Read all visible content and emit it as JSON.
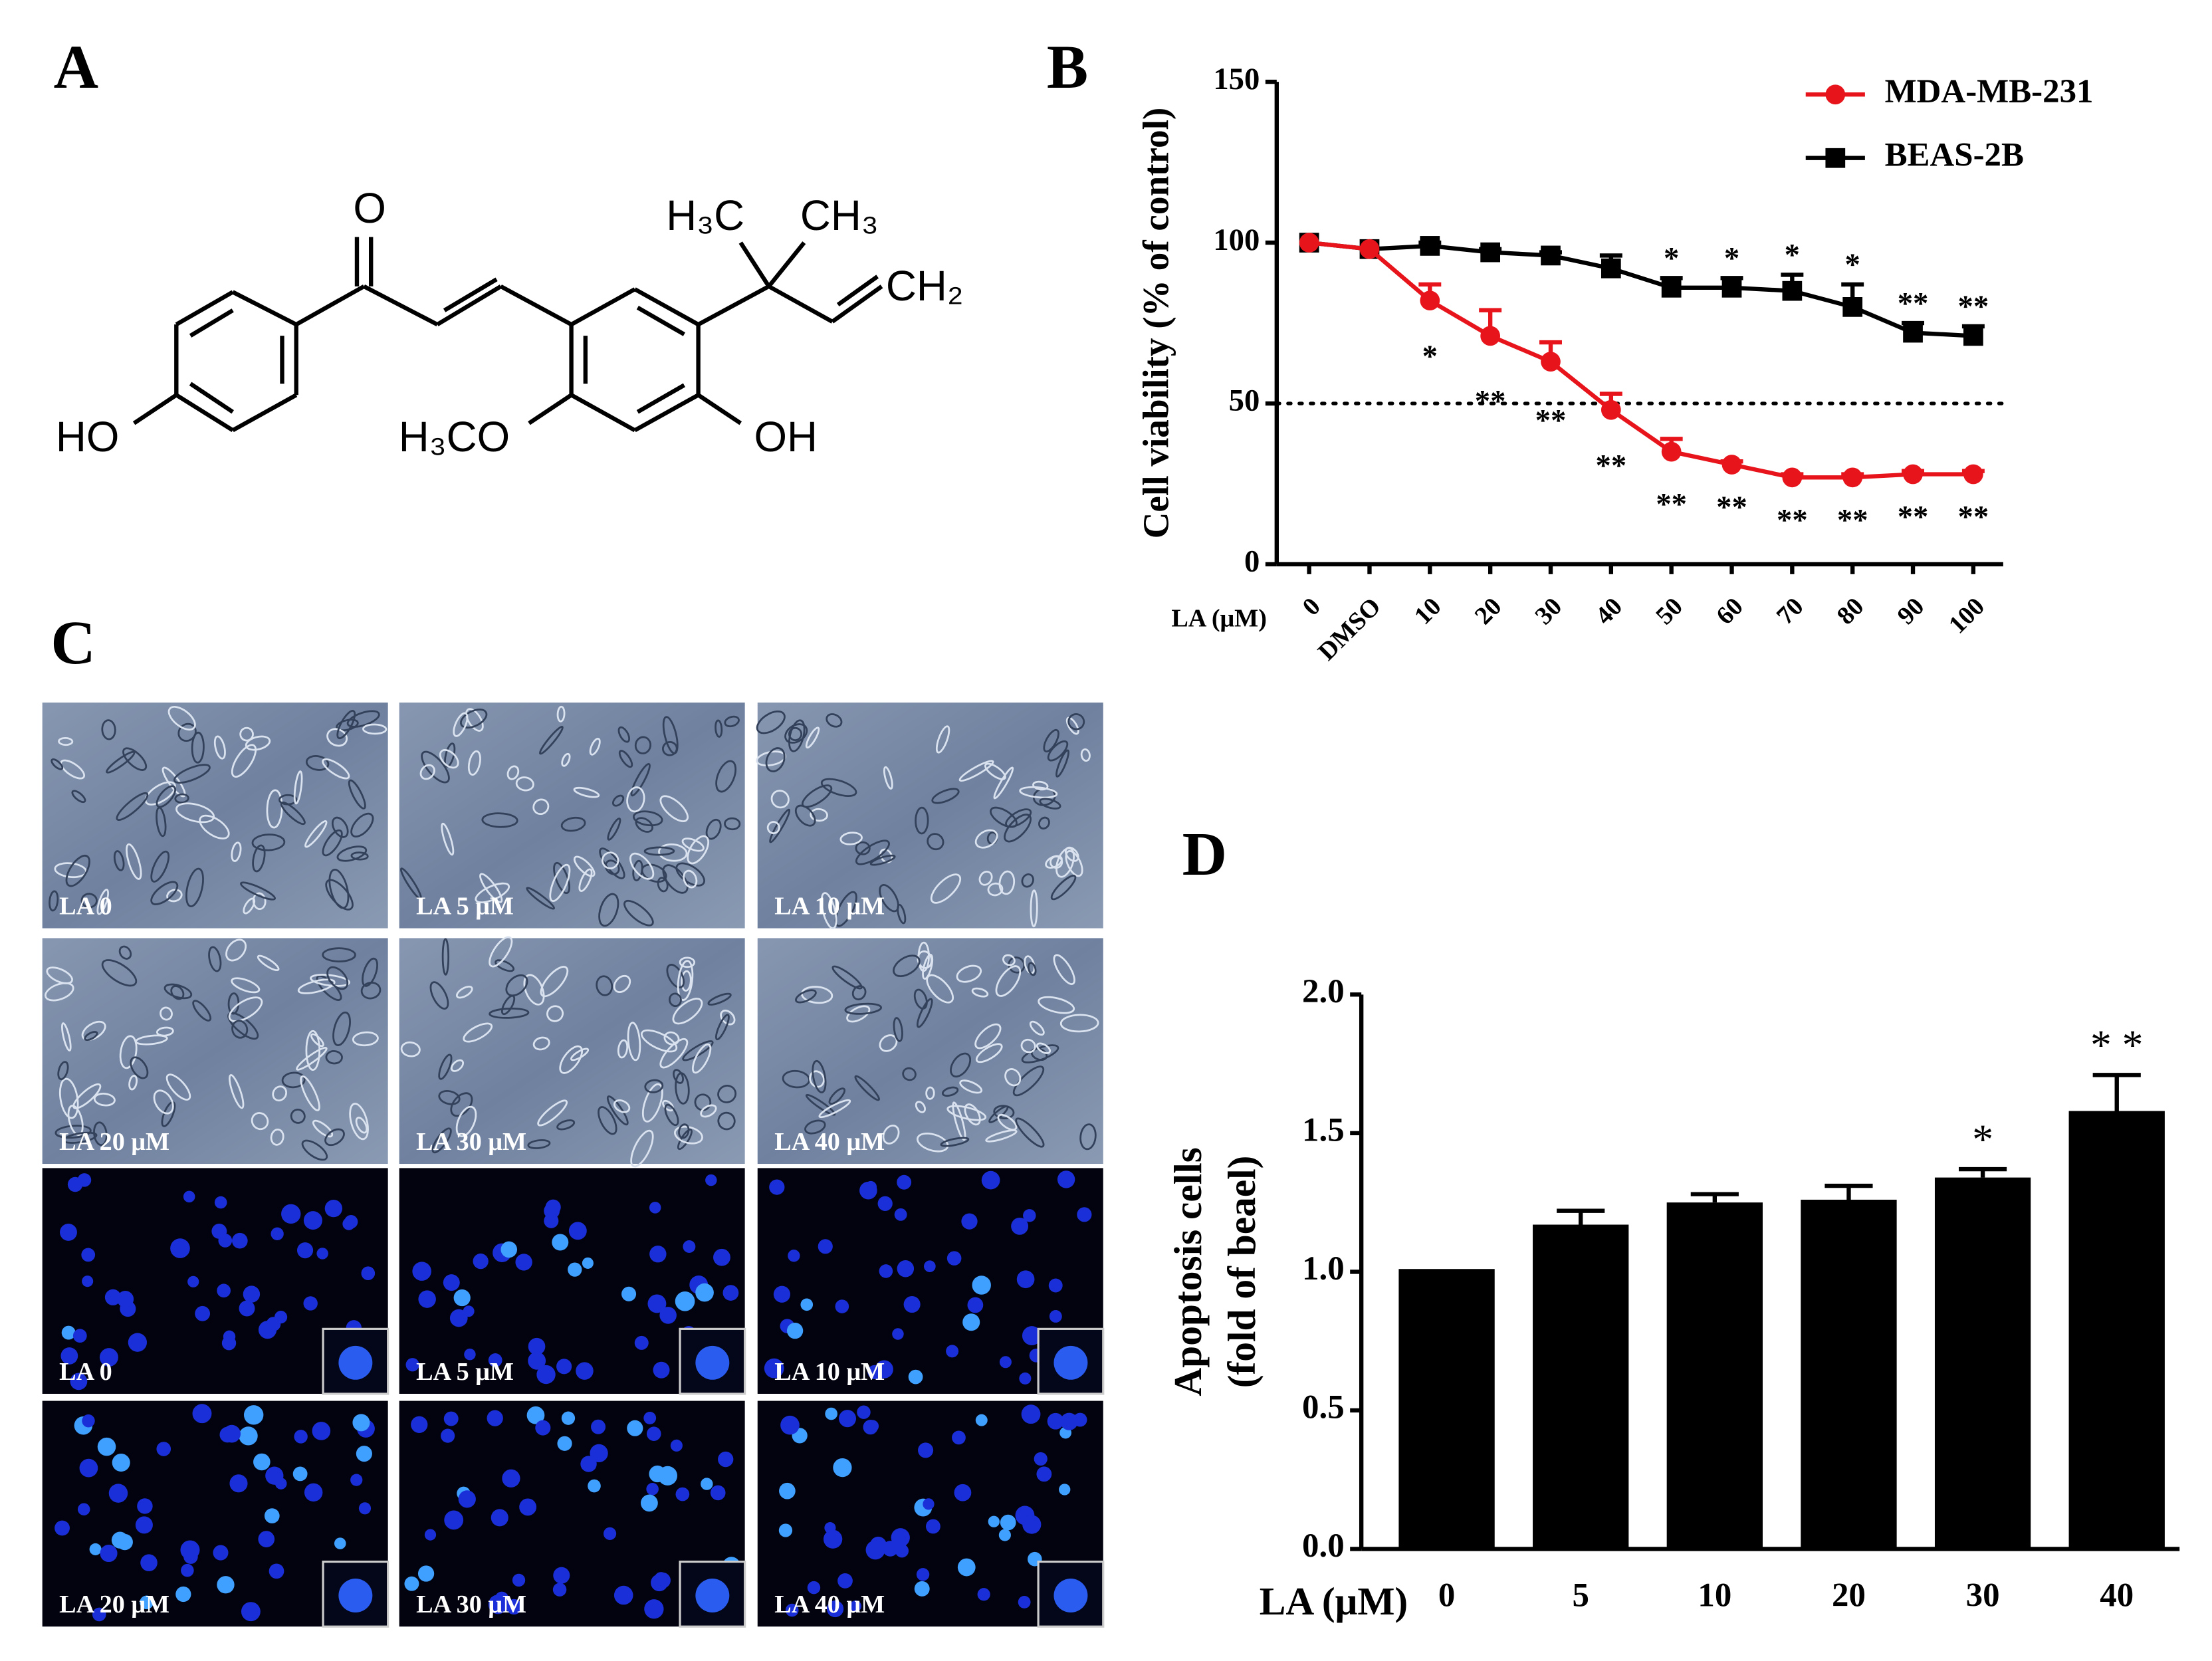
{
  "panel_labels": [
    "A",
    "B",
    "C",
    "D"
  ],
  "structure": {
    "atoms": [
      "O",
      "H₃C",
      "CH₃",
      "CH₂",
      "HO",
      "H₃CO",
      "OH"
    ]
  },
  "micrographs": {
    "labels": [
      "LA 0",
      "LA 5 μM",
      "LA 10 μM",
      "LA 20 μM",
      "LA 30 μM",
      "LA 40 μM",
      "LA 0",
      "LA 5 μM",
      "LA 10 μM",
      "LA 20 μM",
      "LA 30 μM",
      "LA 40 μM"
    ]
  },
  "chart_data": [
    {
      "type": "line",
      "x_label": "LA (μM)",
      "y_label": "Cell viability (% of control)",
      "categories": [
        "0",
        "DMSO",
        "10",
        "20",
        "30",
        "40",
        "50",
        "60",
        "70",
        "80",
        "90",
        "100"
      ],
      "series": [
        {
          "name": "MDA-MB-231",
          "color": "#e8141c",
          "marker": "circle",
          "values": [
            100,
            98,
            82,
            71,
            63,
            48,
            35,
            31,
            27,
            27,
            28,
            28
          ],
          "errors": [
            0,
            0,
            5,
            8,
            6,
            5,
            4,
            1,
            1,
            1,
            1,
            1
          ],
          "annotations": [
            null,
            null,
            "*",
            "**",
            "**",
            "**",
            "**",
            "**",
            "**",
            "**",
            "**",
            "**"
          ]
        },
        {
          "name": "BEAS-2B",
          "color": "#000000",
          "marker": "square",
          "values": [
            100,
            98,
            99,
            97,
            96,
            92,
            86,
            86,
            85,
            80,
            72,
            71
          ],
          "errors": [
            0,
            0,
            1,
            1,
            1,
            4,
            3,
            3,
            5,
            7,
            3,
            3
          ],
          "annotations": [
            null,
            null,
            null,
            null,
            null,
            null,
            "*",
            "*",
            "*",
            "*",
            "**",
            "**"
          ]
        }
      ],
      "ylim": [
        0,
        150
      ],
      "yticks": [
        0,
        50,
        100,
        150
      ],
      "reference_line": 50,
      "legend": "upper right"
    },
    {
      "type": "bar",
      "x_label": "LA (μM)",
      "y_label": [
        "Apoptosis cells",
        "(fold of beael)"
      ],
      "categories": [
        "0",
        "5",
        "10",
        "20",
        "30",
        "40"
      ],
      "values": [
        1.01,
        1.17,
        1.25,
        1.26,
        1.34,
        1.58
      ],
      "errors": [
        0,
        0.05,
        0.03,
        0.05,
        0.03,
        0.13
      ],
      "annotations": [
        null,
        null,
        null,
        null,
        "*",
        "* *"
      ],
      "color": "#000000",
      "ylim": [
        0,
        2
      ],
      "yticks": [
        {
          "value": 0,
          "label": "0.0"
        },
        {
          "value": 0.5,
          "label": "0.5"
        },
        {
          "value": 1,
          "label": "1.0"
        },
        {
          "value": 1.5,
          "label": "1.5"
        },
        {
          "value": 2,
          "label": "2.0"
        }
      ]
    }
  ]
}
